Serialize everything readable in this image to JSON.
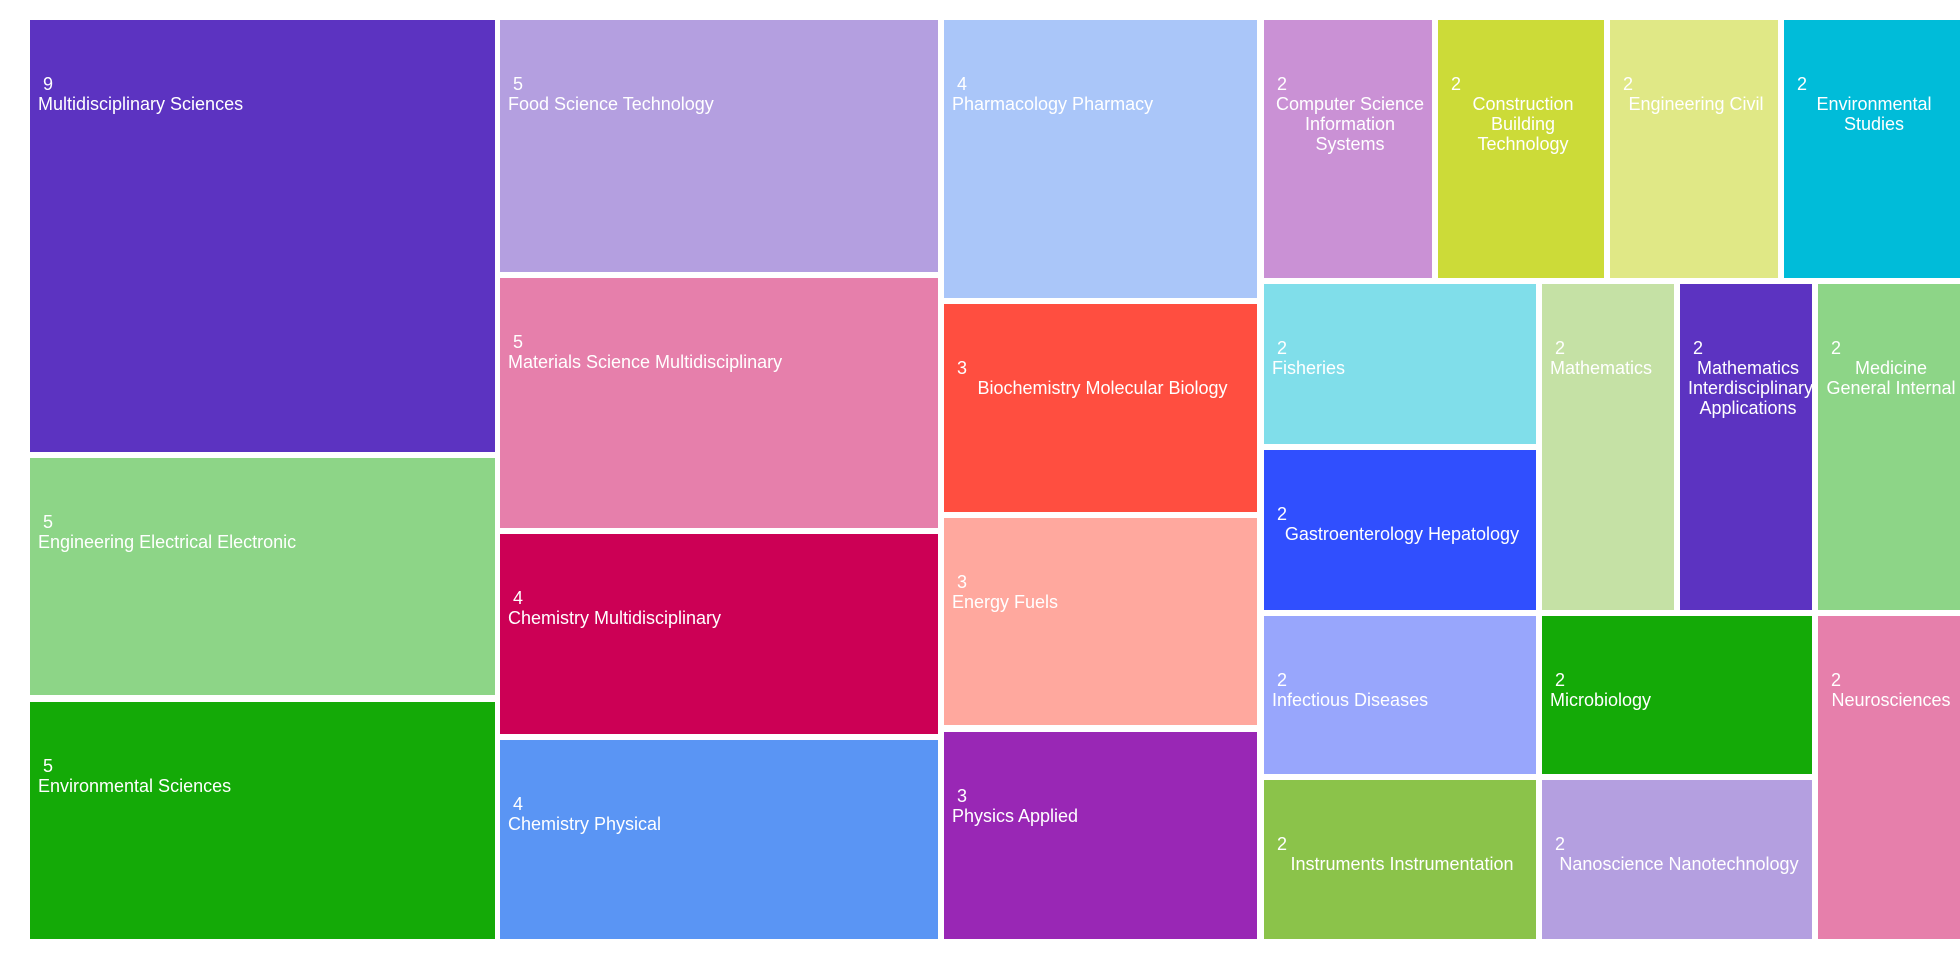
{
  "chart_data": {
    "type": "treemap",
    "title": "",
    "items": [
      {
        "label": "Multidisciplinary Sciences",
        "value": 9,
        "color": "#5c33c1"
      },
      {
        "label": "Engineering Electrical Electronic",
        "value": 5,
        "color": "#8dd587"
      },
      {
        "label": "Environmental Sciences",
        "value": 5,
        "color": "#14aa07"
      },
      {
        "label": "Food Science Technology",
        "value": 5,
        "color": "#b49fe0"
      },
      {
        "label": "Materials Science Multidisciplinary",
        "value": 5,
        "color": "#e67fab"
      },
      {
        "label": "Chemistry Multidisciplinary",
        "value": 4,
        "color": "#cc0055"
      },
      {
        "label": "Chemistry Physical",
        "value": 4,
        "color": "#5a95f4"
      },
      {
        "label": "Pharmacology Pharmacy",
        "value": 4,
        "color": "#aac6f9"
      },
      {
        "label": "Biochemistry Molecular Biology",
        "value": 3,
        "color": "#ff4e40"
      },
      {
        "label": "Energy Fuels",
        "value": 3,
        "color": "#ffa89e"
      },
      {
        "label": "Physics Applied",
        "value": 3,
        "color": "#9927b5"
      },
      {
        "label": "Computer Science Information Systems",
        "value": 2,
        "color": "#ca91d5"
      },
      {
        "label": "Construction Building Technology",
        "value": 2,
        "color": "#ccdb38"
      },
      {
        "label": "Engineering Civil",
        "value": 2,
        "color": "#e0e886"
      },
      {
        "label": "Environmental Studies",
        "value": 2,
        "color": "#00bcd9"
      },
      {
        "label": "Fisheries",
        "value": 2,
        "color": "#80deea"
      },
      {
        "label": "Gastroenterology Hepatology",
        "value": 2,
        "color": "#304ffe"
      },
      {
        "label": "Mathematics",
        "value": 2,
        "color": "#c5e1a5"
      },
      {
        "label": "Mathematics Interdisciplinary Applications",
        "value": 2,
        "color": "#5c33c1"
      },
      {
        "label": "Medicine General Internal",
        "value": 2,
        "color": "#8dd587"
      },
      {
        "label": "Infectious Diseases",
        "value": 2,
        "color": "#98a6fc"
      },
      {
        "label": "Instruments Instrumentation",
        "value": 2,
        "color": "#8bc34a"
      },
      {
        "label": "Microbiology",
        "value": 2,
        "color": "#14aa07"
      },
      {
        "label": "Nanoscience Nanotechnology",
        "value": 2,
        "color": "#b49fe0"
      },
      {
        "label": "Neurosciences",
        "value": 2,
        "color": "#e67fab"
      }
    ]
  }
}
